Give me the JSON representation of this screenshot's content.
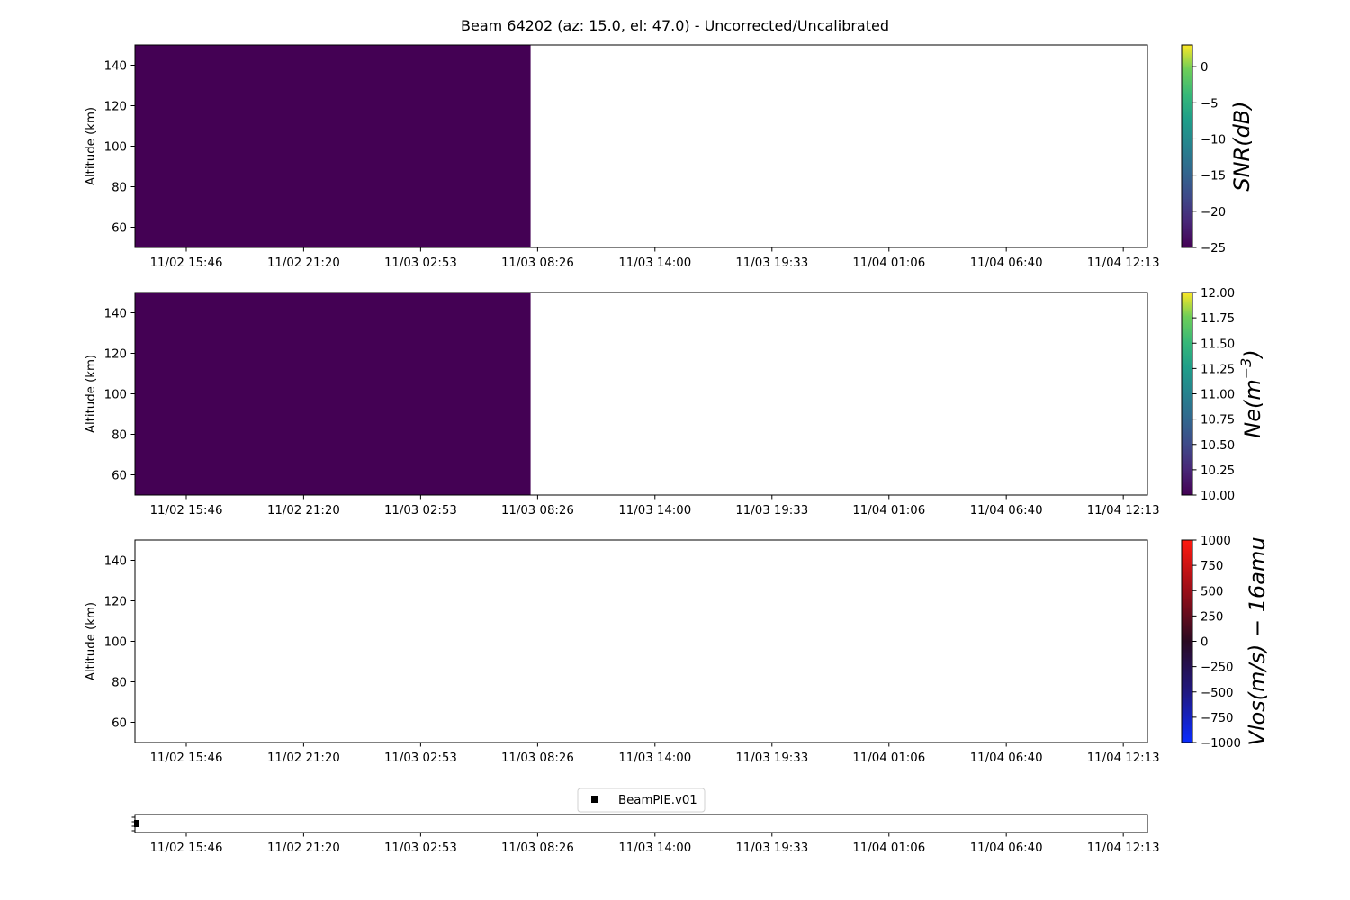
{
  "title": "Beam 64202 (az: 15.0, el: 47.0) - Uncorrected/Uncalibrated",
  "chart_data": [
    {
      "type": "heatmap",
      "panel": "snr",
      "ylabel": "Altitude (km)",
      "ylim": [
        50,
        150
      ],
      "y_ticks": [
        60,
        80,
        100,
        120,
        140
      ],
      "x_tick_labels": [
        "11/02 15:46",
        "11/02 21:20",
        "11/03 02:53",
        "11/03 08:26",
        "11/03 14:00",
        "11/03 19:33",
        "11/04 01:06",
        "11/04 06:40",
        "11/04 12:13"
      ],
      "filled_region": {
        "x_start": "11/02 12:55",
        "x_end": "11/03 08:06",
        "y_range": [
          50,
          150
        ],
        "value": -25
      },
      "fill_color": "#440154",
      "colorbar": {
        "label": "SNR(dB)",
        "range": [
          -25,
          3
        ],
        "ticks": [
          0,
          -5,
          -10,
          -15,
          -20,
          -25
        ],
        "tick_labels": [
          "0",
          "−5",
          "−10",
          "−15",
          "−20",
          "−25"
        ],
        "colormap": "viridis"
      }
    },
    {
      "type": "heatmap",
      "panel": "ne",
      "ylabel": "Altitude (km)",
      "ylim": [
        50,
        150
      ],
      "y_ticks": [
        60,
        80,
        100,
        120,
        140
      ],
      "x_tick_labels": [
        "11/02 15:46",
        "11/02 21:20",
        "11/03 02:53",
        "11/03 08:26",
        "11/03 14:00",
        "11/03 19:33",
        "11/04 01:06",
        "11/04 06:40",
        "11/04 12:13"
      ],
      "filled_region": {
        "x_start": "11/02 12:55",
        "x_end": "11/03 08:06",
        "y_range": [
          50,
          150
        ],
        "value": 10.0
      },
      "fill_color": "#440154",
      "colorbar": {
        "label_main": "Ne(m",
        "label_sup": "−3",
        "label_end": ")",
        "range": [
          10.0,
          12.0
        ],
        "ticks": [
          12.0,
          11.75,
          11.5,
          11.25,
          11.0,
          10.75,
          10.5,
          10.25,
          10.0
        ],
        "tick_labels": [
          "12.00",
          "11.75",
          "11.50",
          "11.25",
          "11.00",
          "10.75",
          "10.50",
          "10.25",
          "10.00"
        ],
        "colormap": "viridis"
      }
    },
    {
      "type": "heatmap",
      "panel": "vlos",
      "ylabel": "Altitude (km)",
      "ylim": [
        50,
        150
      ],
      "y_ticks": [
        60,
        80,
        100,
        120,
        140
      ],
      "x_tick_labels": [
        "11/02 15:46",
        "11/02 21:20",
        "11/03 02:53",
        "11/03 08:26",
        "11/03 14:00",
        "11/03 19:33",
        "11/04 01:06",
        "11/04 06:40",
        "11/04 12:13"
      ],
      "filled_region": null,
      "colorbar": {
        "label": "Vlos(m/s) − 16amu",
        "range": [
          -1000,
          1000
        ],
        "ticks": [
          1000,
          750,
          500,
          250,
          0,
          -250,
          -500,
          -750,
          -1000
        ],
        "tick_labels": [
          "1000",
          "750",
          "500",
          "250",
          "0",
          "−250",
          "−500",
          "−750",
          "−1000"
        ],
        "colormap": "blue-black-red"
      }
    },
    {
      "type": "scatter",
      "panel": "beam_mode",
      "x_tick_labels": [
        "11/02 15:46",
        "11/02 21:20",
        "11/03 02:53",
        "11/03 08:26",
        "11/03 14:00",
        "11/03 19:33",
        "11/04 01:06",
        "11/04 06:40",
        "11/04 12:13"
      ],
      "legend": {
        "entries": [
          "BeamPIE.v01"
        ],
        "placement": "top-center"
      },
      "marker_color": "#000000"
    }
  ]
}
